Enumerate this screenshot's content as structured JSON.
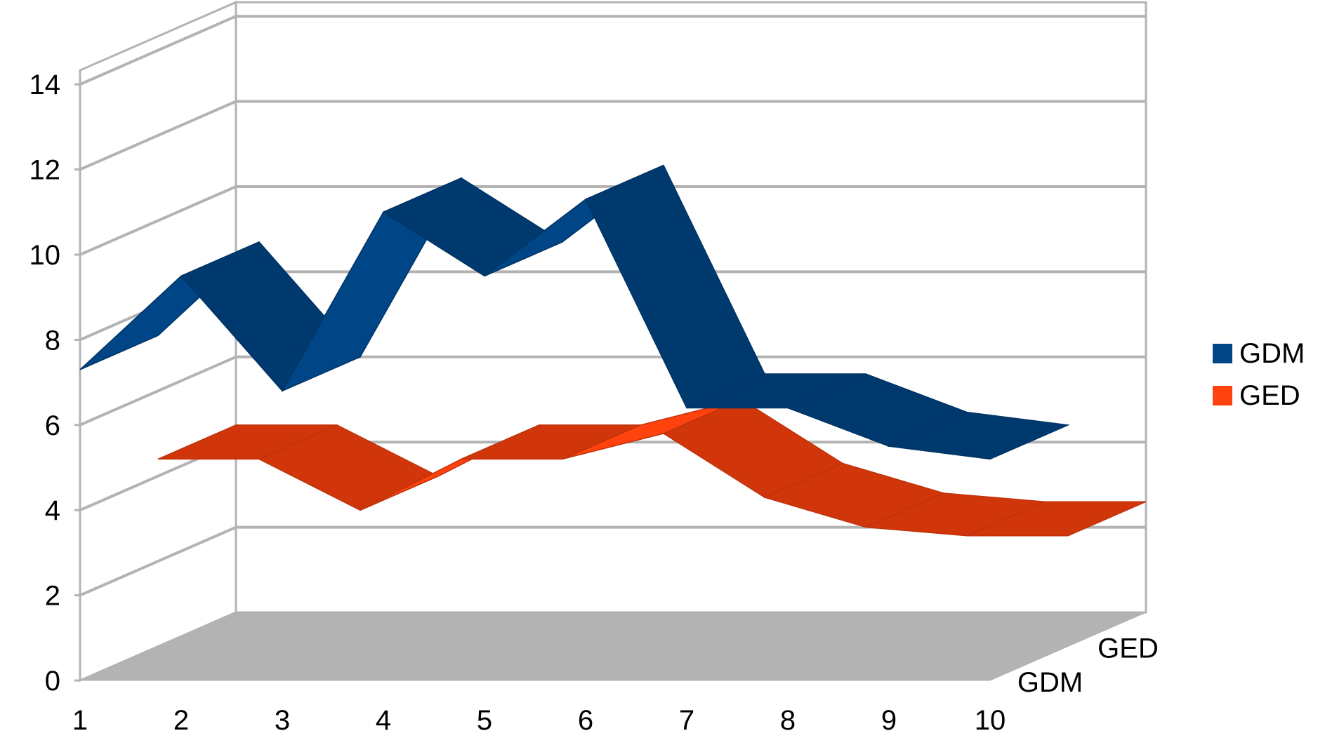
{
  "chart_data": {
    "type": "line",
    "style": "3d-ribbon",
    "categories": [
      "1",
      "2",
      "3",
      "4",
      "5",
      "6",
      "7",
      "8",
      "9",
      "10"
    ],
    "series": [
      {
        "name": "GDM",
        "color": "#004586",
        "values": [
          7.3,
          9.5,
          6.8,
          11.0,
          9.5,
          11.3,
          6.4,
          6.4,
          5.5,
          5.2
        ]
      },
      {
        "name": "GED",
        "color": "#FF420E",
        "values": [
          4.4,
          4.4,
          3.2,
          4.4,
          4.4,
          5.0,
          3.5,
          2.8,
          2.6,
          2.6
        ]
      }
    ],
    "ylim": [
      0,
      14
    ],
    "y_ticks": [
      "0",
      "2",
      "4",
      "6",
      "8",
      "10",
      "12",
      "14"
    ],
    "depth_labels": [
      "GDM",
      "GED"
    ],
    "grid": true,
    "legend": "right"
  }
}
